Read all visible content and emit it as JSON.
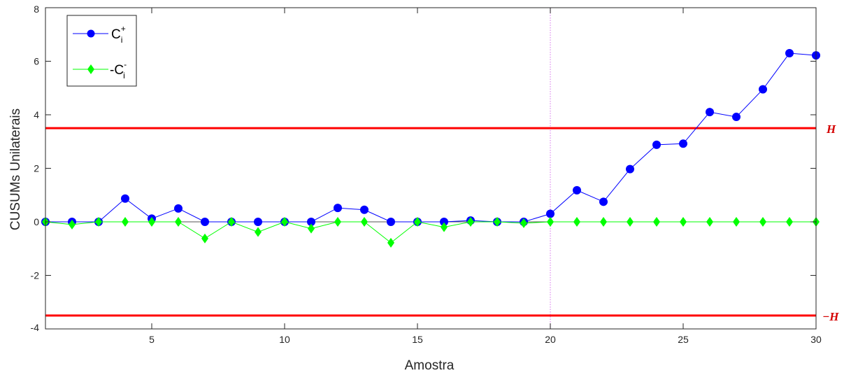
{
  "chart_data": {
    "type": "line",
    "title": "",
    "xlabel": "Amostra",
    "ylabel": "CUSUMs Unilaterais",
    "xlim": [
      1,
      30
    ],
    "ylim": [
      -4,
      8
    ],
    "xticks": [
      5,
      10,
      15,
      20,
      25,
      30
    ],
    "yticks": [
      -4,
      -2,
      0,
      2,
      4,
      6,
      8
    ],
    "grid": false,
    "legend_position": "top-left",
    "x": [
      1,
      2,
      3,
      4,
      5,
      6,
      7,
      8,
      9,
      10,
      11,
      12,
      13,
      14,
      15,
      16,
      17,
      18,
      19,
      20,
      21,
      22,
      23,
      24,
      25,
      26,
      27,
      28,
      29,
      30
    ],
    "series": [
      {
        "name": "C_i^+",
        "name_main": "C",
        "name_sup": "+",
        "name_sub": "i",
        "color": "#0000ff",
        "marker": "circle",
        "values": [
          0,
          0,
          0,
          0.87,
          0.12,
          0.5,
          0,
          0,
          0,
          0,
          0,
          0.52,
          0.45,
          0,
          0,
          0,
          0.05,
          0,
          0,
          0.3,
          1.18,
          0.75,
          1.97,
          2.88,
          2.92,
          4.1,
          3.92,
          4.95,
          6.3,
          6.22
        ]
      },
      {
        "name": "-C_i^-",
        "name_main": "-C",
        "name_sup": "-",
        "name_sub": "i",
        "color": "#00ff00",
        "marker": "diamond",
        "values": [
          0,
          -0.1,
          0,
          0,
          0,
          0,
          -0.62,
          0,
          -0.38,
          0,
          -0.25,
          0,
          0,
          -0.78,
          0,
          -0.2,
          0,
          0,
          -0.05,
          0,
          0,
          0,
          0,
          0,
          0,
          0,
          0,
          0,
          0,
          0
        ]
      }
    ],
    "reference_lines": [
      {
        "label": "H",
        "y": 3.5,
        "color": "#ff0000"
      },
      {
        "label": "−H",
        "y": -3.5,
        "color": "#ff0000"
      }
    ],
    "vertical_line": {
      "x": 20,
      "color": "#dd88ee",
      "style": "dotted"
    }
  }
}
